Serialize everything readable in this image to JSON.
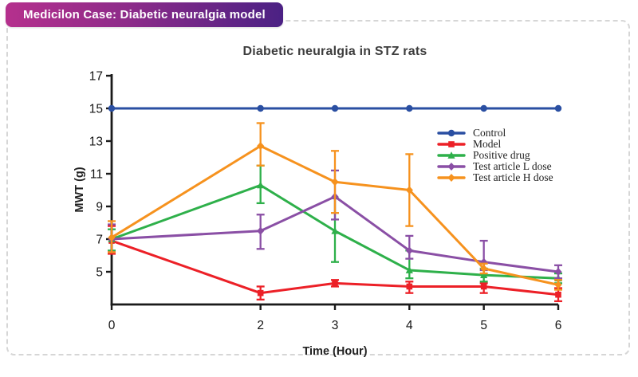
{
  "header": {
    "title": "Medicilon Case: Diabetic neuralgia model",
    "gradient_left": "#b5308d",
    "gradient_right": "#4b2184"
  },
  "chart_data": {
    "type": "line",
    "title": "Diabetic neuralgia in STZ rats",
    "xlabel": "Time (Hour)",
    "ylabel": "MWT (g)",
    "x": [
      0,
      2,
      3,
      4,
      5,
      6
    ],
    "x_ticks": [
      "0",
      "2",
      "3",
      "4",
      "5",
      "6"
    ],
    "y_ticks": [
      "5",
      "7",
      "9",
      "11",
      "13",
      "15",
      "17"
    ],
    "xlim": [
      0,
      6
    ],
    "ylim": [
      3,
      17
    ],
    "grid": false,
    "legend_position": "right",
    "axis_color": "#1a1a1a",
    "series": [
      {
        "name": "Control",
        "color": "#2a4fa2",
        "marker": "circle",
        "values": [
          15,
          15,
          15,
          15,
          15,
          15
        ],
        "err_lo": [
          15,
          15,
          15,
          15,
          15,
          15
        ],
        "err_hi": [
          15,
          15,
          15,
          15,
          15,
          15
        ]
      },
      {
        "name": "Model",
        "color": "#ec2027",
        "marker": "square",
        "values": [
          6.9,
          3.7,
          4.3,
          4.1,
          4.1,
          3.6
        ],
        "err_lo": [
          6.1,
          3.3,
          4.1,
          3.7,
          3.7,
          3.2
        ],
        "err_hi": [
          7.8,
          4.1,
          4.5,
          4.4,
          4.3,
          4.0
        ]
      },
      {
        "name": "Positive drug",
        "color": "#2eb04a",
        "marker": "triangle",
        "values": [
          7.0,
          10.3,
          7.5,
          5.1,
          4.8,
          4.6
        ],
        "err_lo": [
          6.3,
          9.2,
          5.6,
          4.6,
          4.4,
          4.3
        ],
        "err_hi": [
          7.6,
          11.5,
          9.5,
          6.3,
          5.2,
          4.9
        ]
      },
      {
        "name": "Test article L dose",
        "color": "#8a4fa5",
        "marker": "diamond",
        "values": [
          7.0,
          7.5,
          9.6,
          6.3,
          5.6,
          5.0
        ],
        "err_lo": [
          6.2,
          6.4,
          8.2,
          5.8,
          5.1,
          4.6
        ],
        "err_hi": [
          7.9,
          8.5,
          11.2,
          7.2,
          6.9,
          5.4
        ]
      },
      {
        "name": "Test article H dose",
        "color": "#f6921e",
        "marker": "diamond",
        "values": [
          7.1,
          12.7,
          10.5,
          10.0,
          5.2,
          4.2
        ],
        "err_lo": [
          6.2,
          11.5,
          8.6,
          7.8,
          4.9,
          3.9
        ],
        "err_hi": [
          8.1,
          14.1,
          12.4,
          12.2,
          5.5,
          4.5
        ]
      }
    ]
  }
}
